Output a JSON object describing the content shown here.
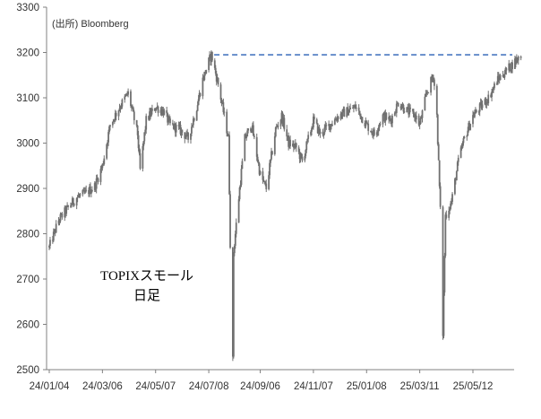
{
  "source_note": "(出所) Bloomberg",
  "chart_title_line1": "TOPIXスモール",
  "chart_title_line2": "日足",
  "colors": {
    "candle": "#707070",
    "axis": "#808080",
    "reference_line": "#4a78c0"
  },
  "chart_data": {
    "type": "line",
    "ylim": [
      2500,
      3300
    ],
    "yticks": [
      2500,
      2600,
      2700,
      2800,
      2900,
      3000,
      3100,
      3200,
      3300
    ],
    "xticks": [
      "24/01/04",
      "24/03/06",
      "24/05/07",
      "24/07/08",
      "24/09/06",
      "24/11/07",
      "25/01/08",
      "25/03/11",
      "25/05/12"
    ],
    "grid": false,
    "reference_line": {
      "value": 3195,
      "style": "dashed",
      "from": "24/07/08"
    },
    "series": [
      {
        "name": "",
        "points": [
          [
            "24/01/04",
            2770
          ],
          [
            "24/01/15",
            2830
          ],
          [
            "24/01/25",
            2855
          ],
          [
            "24/02/05",
            2880
          ],
          [
            "24/02/16",
            2890
          ],
          [
            "24/02/26",
            2905
          ],
          [
            "24/03/06",
            2950
          ],
          [
            "24/03/15",
            3040
          ],
          [
            "24/03/26",
            3080
          ],
          [
            "24/04/05",
            3110
          ],
          [
            "24/04/16",
            3020
          ],
          [
            "24/04/19",
            2940
          ],
          [
            "24/04/26",
            3050
          ],
          [
            "24/05/07",
            3080
          ],
          [
            "24/05/16",
            3070
          ],
          [
            "24/05/24",
            3040
          ],
          [
            "24/06/04",
            3030
          ],
          [
            "24/06/14",
            3010
          ],
          [
            "24/06/24",
            3080
          ],
          [
            "24/07/01",
            3140
          ],
          [
            "24/07/08",
            3180
          ],
          [
            "24/07/11",
            3195
          ],
          [
            "24/07/19",
            3130
          ],
          [
            "24/07/26",
            3060
          ],
          [
            "24/07/31",
            3010
          ],
          [
            "24/08/02",
            2780
          ],
          [
            "24/08/05",
            2520
          ],
          [
            "24/08/06",
            2760
          ],
          [
            "24/08/13",
            2900
          ],
          [
            "24/08/19",
            3010
          ],
          [
            "24/08/27",
            3040
          ],
          [
            "24/09/06",
            2930
          ],
          [
            "24/09/13",
            2900
          ],
          [
            "24/09/24",
            3030
          ],
          [
            "24/10/01",
            3060
          ],
          [
            "24/10/09",
            3000
          ],
          [
            "24/10/18",
            2990
          ],
          [
            "24/10/25",
            2960
          ],
          [
            "24/11/07",
            3050
          ],
          [
            "24/11/15",
            3020
          ],
          [
            "24/11/26",
            3040
          ],
          [
            "24/12/06",
            3060
          ],
          [
            "24/12/16",
            3070
          ],
          [
            "24/12/26",
            3080
          ],
          [
            "25/01/08",
            3040
          ],
          [
            "25/01/17",
            3020
          ],
          [
            "25/01/27",
            3060
          ],
          [
            "25/02/05",
            3050
          ],
          [
            "25/02/14",
            3090
          ],
          [
            "25/02/25",
            3070
          ],
          [
            "25/03/06",
            3060
          ],
          [
            "25/03/11",
            3040
          ],
          [
            "25/03/19",
            3110
          ],
          [
            "25/03/27",
            3150
          ],
          [
            "25/03/31",
            3060
          ],
          [
            "25/04/04",
            2850
          ],
          [
            "25/04/07",
            2580
          ],
          [
            "25/04/10",
            2840
          ],
          [
            "25/04/17",
            2870
          ],
          [
            "25/04/25",
            2960
          ],
          [
            "25/05/02",
            3010
          ],
          [
            "25/05/12",
            3060
          ],
          [
            "25/05/21",
            3080
          ],
          [
            "25/05/30",
            3100
          ],
          [
            "25/06/10",
            3140
          ],
          [
            "25/06/20",
            3160
          ],
          [
            "25/06/30",
            3180
          ],
          [
            "25/07/07",
            3195
          ]
        ]
      }
    ]
  }
}
